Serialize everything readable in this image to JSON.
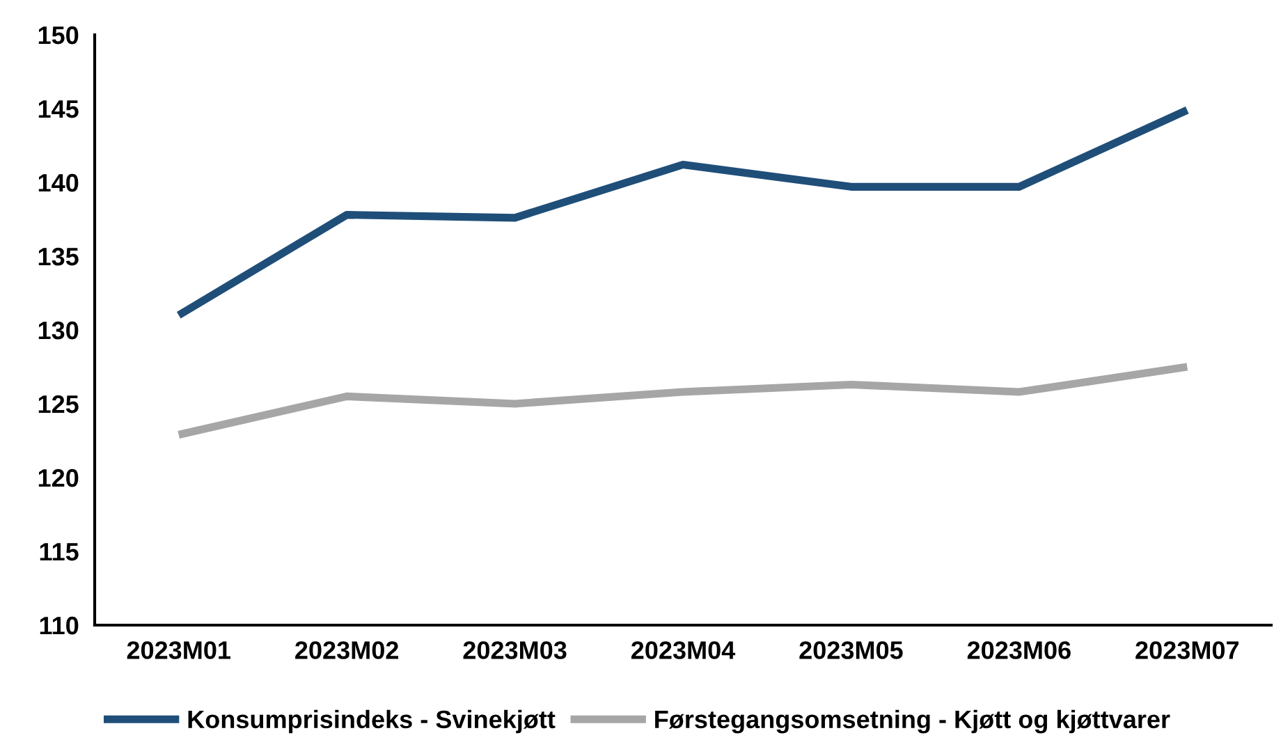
{
  "chart_data": {
    "type": "line",
    "categories": [
      "2023M01",
      "2023M02",
      "2023M03",
      "2023M04",
      "2023M05",
      "2023M06",
      "2023M07"
    ],
    "series": [
      {
        "name": "Konsumprisindeks - Svinekjøtt",
        "color": "#1f4e79",
        "values": [
          131.0,
          137.8,
          137.6,
          141.2,
          139.7,
          139.7,
          144.9
        ]
      },
      {
        "name": "Førstegangsomsetning - Kjøtt og kjøttvarer",
        "color": "#a6a6a6",
        "values": [
          122.9,
          125.5,
          125.0,
          125.8,
          126.3,
          125.8,
          127.5
        ]
      }
    ],
    "ylim": [
      110,
      150
    ],
    "yticks": [
      110,
      115,
      120,
      125,
      130,
      135,
      140,
      145,
      150
    ],
    "grid": false,
    "legend": "bottom",
    "marker": "none",
    "line_style": "solid"
  }
}
